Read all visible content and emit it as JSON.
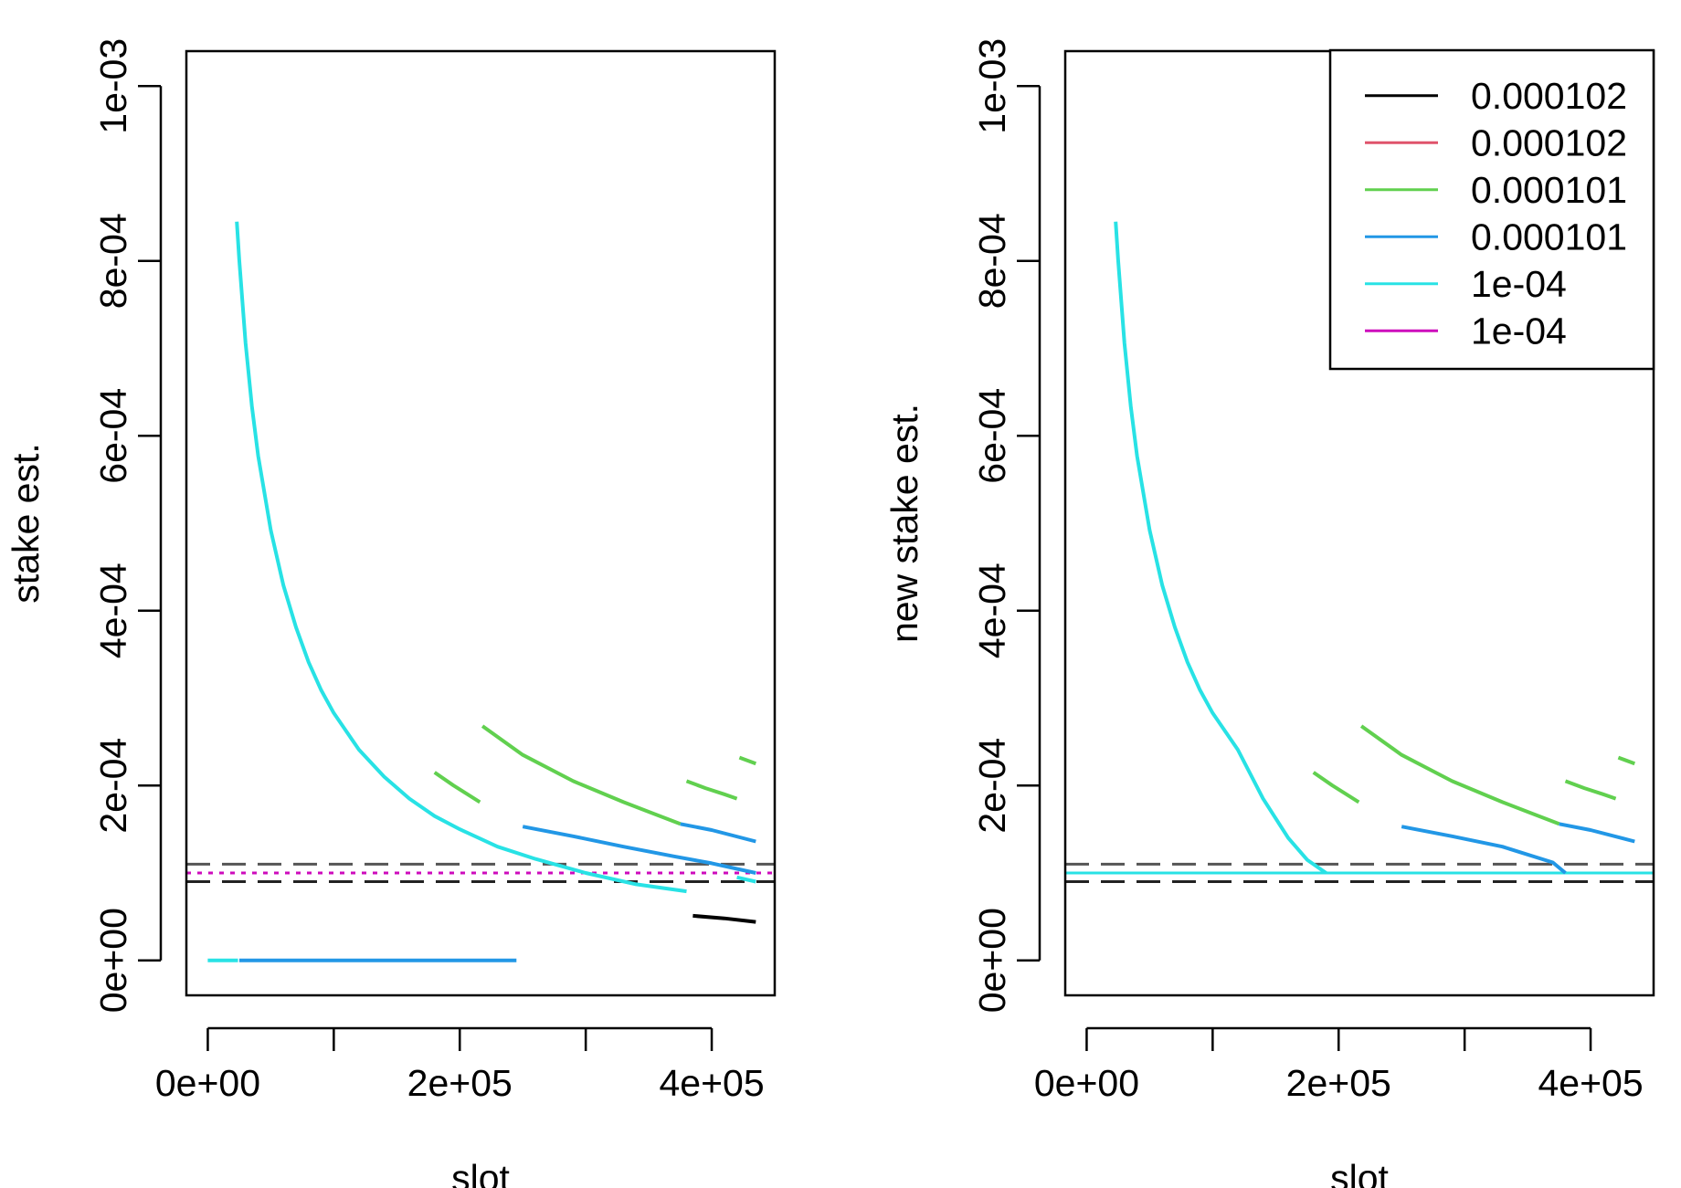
{
  "chart_data": [
    {
      "type": "line",
      "xlabel": "slot",
      "ylabel": "stake est.",
      "xlim": [
        -17000,
        450000
      ],
      "ylim": [
        -4e-05,
        0.00104
      ],
      "x_ticks": [
        {
          "value": 0,
          "label": "0e+00"
        },
        {
          "value": 100000,
          "label": ""
        },
        {
          "value": 200000,
          "label": "2e+05"
        },
        {
          "value": 300000,
          "label": ""
        },
        {
          "value": 400000,
          "label": "4e+05"
        }
      ],
      "y_ticks": [
        {
          "value": 0,
          "label": "0e+00"
        },
        {
          "value": 0.0002,
          "label": "2e-04"
        },
        {
          "value": 0.0004,
          "label": "4e-04"
        },
        {
          "value": 0.0006,
          "label": "6e-04"
        },
        {
          "value": 0.0008,
          "label": "8e-04"
        },
        {
          "value": 0.001,
          "label": "1e-03"
        }
      ],
      "hlines": [
        {
          "y": 0.00011,
          "color": "#555555",
          "style": "dashed"
        },
        {
          "y": 9e-05,
          "color": "#222222",
          "style": "dashed"
        },
        {
          "y": 0.0001,
          "color": "#DF536B",
          "style": "dotted"
        },
        {
          "y": 0.0001,
          "color": "#CD0BBC",
          "style": "dotted"
        }
      ],
      "series": [
        {
          "color": "#2297E6",
          "segments": [
            {
              "x": [
                25000,
                245000
              ],
              "y": [
                0,
                0
              ]
            },
            {
              "x": [
                250000,
                290000,
                330000,
                370000,
                400000,
                435000
              ],
              "y": [
                0.000153,
                0.000142,
                0.00013,
                0.000119,
                0.000111,
                0.0001
              ]
            },
            {
              "x": [
                375000,
                400000,
                435000
              ],
              "y": [
                0.000156,
                0.000149,
                0.000136
              ]
            }
          ]
        },
        {
          "color": "#61D04F",
          "segments": [
            {
              "x": [
                180000,
                195000,
                205000,
                216000
              ],
              "y": [
                0.000215,
                0.0002,
                0.000191,
                0.000181
              ]
            },
            {
              "x": [
                218000,
                250000,
                290000,
                330000,
                375000
              ],
              "y": [
                0.000268,
                0.000235,
                0.000205,
                0.000181,
                0.000156
              ]
            },
            {
              "x": [
                380000,
                395000,
                410000,
                420000
              ],
              "y": [
                0.000205,
                0.000197,
                0.00019,
                0.000185
              ]
            },
            {
              "x": [
                422000,
                435000
              ],
              "y": [
                0.000232,
                0.000225
              ]
            }
          ]
        },
        {
          "color": "#28E2E5",
          "segments": [
            {
              "x": [
                0,
                24000
              ],
              "y": [
                0,
                0
              ]
            },
            {
              "x": [
                23000,
                25000,
                30000,
                35000,
                40000,
                50000,
                60000,
                70000,
                80000,
                90000,
                100000,
                120000,
                140000,
                160000,
                180000,
                200000,
                230000,
                260000,
                300000,
                340000,
                380000
              ],
              "y": [
                0.000845,
                0.000801,
                0.000706,
                0.000634,
                0.000577,
                0.000492,
                0.000429,
                0.000381,
                0.000341,
                0.000309,
                0.000283,
                0.000241,
                0.00021,
                0.000185,
                0.000165,
                0.00015,
                0.00013,
                0.000116,
                0.0001,
                8.7e-05,
                7.9e-05
              ]
            },
            {
              "x": [
                420000,
                435000
              ],
              "y": [
                9.5e-05,
                9e-05
              ]
            }
          ]
        },
        {
          "color": "#000000",
          "segments": [
            {
              "x": [
                385000,
                410000,
                435000
              ],
              "y": [
                5.1e-05,
                4.8e-05,
                4.4e-05
              ]
            }
          ]
        }
      ]
    },
    {
      "type": "line",
      "xlabel": "slot",
      "ylabel": "new stake est.",
      "xlim": [
        -17000,
        450000
      ],
      "ylim": [
        -4e-05,
        0.00104
      ],
      "x_ticks": [
        {
          "value": 0,
          "label": "0e+00"
        },
        {
          "value": 100000,
          "label": ""
        },
        {
          "value": 200000,
          "label": "2e+05"
        },
        {
          "value": 300000,
          "label": ""
        },
        {
          "value": 400000,
          "label": "4e+05"
        }
      ],
      "y_ticks": [
        {
          "value": 0,
          "label": "0e+00"
        },
        {
          "value": 0.0002,
          "label": "2e-04"
        },
        {
          "value": 0.0004,
          "label": "4e-04"
        },
        {
          "value": 0.0006,
          "label": "6e-04"
        },
        {
          "value": 0.0008,
          "label": "8e-04"
        },
        {
          "value": 0.001,
          "label": "1e-03"
        }
      ],
      "hlines": [
        {
          "y": 0.00011,
          "color": "#555555",
          "style": "dashed"
        },
        {
          "y": 9e-05,
          "color": "#222222",
          "style": "dashed"
        },
        {
          "y": 0.0001,
          "color": "#2297E6",
          "style": "solid"
        },
        {
          "y": 0.0001,
          "color": "#28E2E5",
          "style": "solid"
        }
      ],
      "series": [
        {
          "color": "#2297E6",
          "segments": [
            {
              "x": [
                250000,
                290000,
                330000,
                370000,
                380000
              ],
              "y": [
                0.000153,
                0.000142,
                0.00013,
                0.000112,
                0.0001
              ]
            },
            {
              "x": [
                375000,
                400000,
                435000
              ],
              "y": [
                0.000156,
                0.000149,
                0.000136
              ]
            }
          ]
        },
        {
          "color": "#61D04F",
          "segments": [
            {
              "x": [
                180000,
                195000,
                205000,
                216000
              ],
              "y": [
                0.000215,
                0.0002,
                0.000191,
                0.000181
              ]
            },
            {
              "x": [
                218000,
                250000,
                290000,
                330000,
                375000
              ],
              "y": [
                0.000268,
                0.000235,
                0.000205,
                0.000181,
                0.000156
              ]
            },
            {
              "x": [
                380000,
                395000,
                410000,
                420000
              ],
              "y": [
                0.000205,
                0.000197,
                0.00019,
                0.000185
              ]
            },
            {
              "x": [
                422000,
                435000
              ],
              "y": [
                0.000232,
                0.000225
              ]
            }
          ]
        },
        {
          "color": "#28E2E5",
          "segments": [
            {
              "x": [
                23000,
                25000,
                30000,
                35000,
                40000,
                50000,
                60000,
                70000,
                80000,
                90000,
                100000,
                120000,
                140000,
                160000,
                175000,
                190000
              ],
              "y": [
                0.000845,
                0.000801,
                0.000706,
                0.000634,
                0.000577,
                0.000492,
                0.000429,
                0.000381,
                0.000341,
                0.000309,
                0.000283,
                0.000241,
                0.000185,
                0.00014,
                0.000115,
                0.0001
              ]
            }
          ]
        }
      ],
      "legend": {
        "position": "top-right",
        "items": [
          {
            "label": "0.000102",
            "color": "#000000"
          },
          {
            "label": "0.000102",
            "color": "#DF536B"
          },
          {
            "label": "0.000101",
            "color": "#61D04F"
          },
          {
            "label": "0.000101",
            "color": "#2297E6"
          },
          {
            "label": "1e-04",
            "color": "#28E2E5"
          },
          {
            "label": "1e-04",
            "color": "#CD0BBC"
          }
        ]
      }
    }
  ]
}
